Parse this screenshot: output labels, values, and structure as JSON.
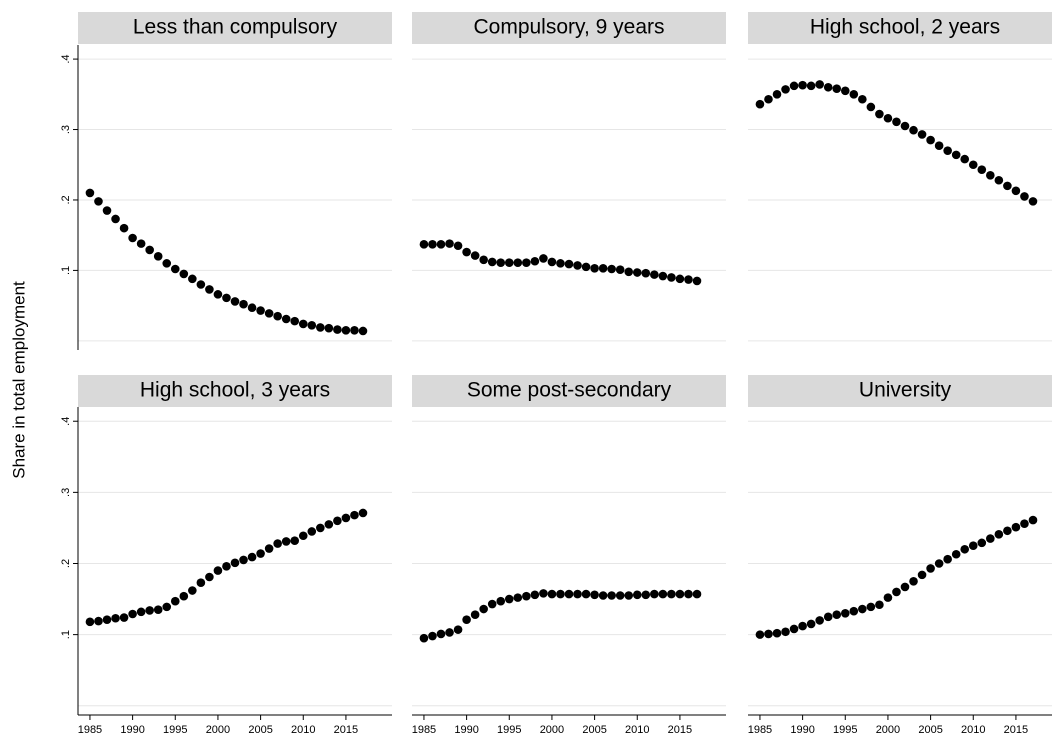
{
  "y_label": "Share in total employment",
  "chart_data": [
    {
      "type": "scatter",
      "title": "Less than compulsory",
      "color": "#000000",
      "x": [
        1985,
        1986,
        1987,
        1988,
        1989,
        1990,
        1991,
        1992,
        1993,
        1994,
        1995,
        1996,
        1997,
        1998,
        1999,
        2000,
        2001,
        2002,
        2003,
        2004,
        2005,
        2006,
        2007,
        2008,
        2009,
        2010,
        2011,
        2012,
        2013,
        2014,
        2015,
        2016,
        2017
      ],
      "values": [
        0.21,
        0.198,
        0.185,
        0.173,
        0.16,
        0.146,
        0.138,
        0.129,
        0.12,
        0.11,
        0.102,
        0.095,
        0.088,
        0.08,
        0.073,
        0.066,
        0.061,
        0.056,
        0.052,
        0.047,
        0.043,
        0.039,
        0.035,
        0.031,
        0.028,
        0.024,
        0.022,
        0.019,
        0.018,
        0.016,
        0.015,
        0.015,
        0.014
      ],
      "xlim": [
        1983.6,
        2020.4
      ],
      "ylim": [
        -0.013,
        0.42
      ],
      "yticks": [
        0,
        {
          "value": 0.1,
          "label": ".1"
        },
        {
          "value": 0.2,
          "label": ".2"
        },
        {
          "value": 0.3,
          "label": ".3"
        },
        {
          "value": 0.4,
          "label": ".4"
        }
      ],
      "grid": true
    },
    {
      "type": "scatter",
      "title": "Compulsory, 9 years",
      "color": "#000000",
      "x": [
        1985,
        1986,
        1987,
        1988,
        1989,
        1990,
        1991,
        1992,
        1993,
        1994,
        1995,
        1996,
        1997,
        1998,
        1999,
        2000,
        2001,
        2002,
        2003,
        2004,
        2005,
        2006,
        2007,
        2008,
        2009,
        2010,
        2011,
        2012,
        2013,
        2014,
        2015,
        2016,
        2017
      ],
      "values": [
        0.137,
        0.137,
        0.137,
        0.138,
        0.135,
        0.126,
        0.121,
        0.115,
        0.112,
        0.111,
        0.111,
        0.111,
        0.111,
        0.113,
        0.117,
        0.112,
        0.11,
        0.109,
        0.107,
        0.105,
        0.103,
        0.103,
        0.102,
        0.101,
        0.098,
        0.097,
        0.096,
        0.094,
        0.092,
        0.09,
        0.088,
        0.087,
        0.085
      ],
      "xlim": [
        1983.6,
        2020.4
      ],
      "ylim": [
        -0.013,
        0.42
      ],
      "yticks": [
        0,
        0.1,
        0.2,
        0.3,
        0.4
      ],
      "grid": true
    },
    {
      "type": "scatter",
      "title": "High school, 2 years",
      "color": "#000000",
      "x": [
        1985,
        1986,
        1987,
        1988,
        1989,
        1990,
        1991,
        1992,
        1993,
        1994,
        1995,
        1996,
        1997,
        1998,
        1999,
        2000,
        2001,
        2002,
        2003,
        2004,
        2005,
        2006,
        2007,
        2008,
        2009,
        2010,
        2011,
        2012,
        2013,
        2014,
        2015,
        2016,
        2017
      ],
      "values": [
        0.336,
        0.343,
        0.35,
        0.357,
        0.362,
        0.363,
        0.362,
        0.364,
        0.36,
        0.358,
        0.355,
        0.35,
        0.343,
        0.332,
        0.322,
        0.316,
        0.311,
        0.305,
        0.299,
        0.293,
        0.285,
        0.277,
        0.27,
        0.264,
        0.258,
        0.25,
        0.243,
        0.235,
        0.228,
        0.22,
        0.213,
        0.205,
        0.198
      ],
      "xlim": [
        1983.6,
        2020.4
      ],
      "ylim": [
        -0.013,
        0.42
      ],
      "yticks": [
        0,
        0.1,
        0.2,
        0.3,
        0.4
      ],
      "grid": true
    },
    {
      "type": "scatter",
      "title": "High school, 3 years",
      "color": "#000000",
      "x": [
        1985,
        1986,
        1987,
        1988,
        1989,
        1990,
        1991,
        1992,
        1993,
        1994,
        1995,
        1996,
        1997,
        1998,
        1999,
        2000,
        2001,
        2002,
        2003,
        2004,
        2005,
        2006,
        2007,
        2008,
        2009,
        2010,
        2011,
        2012,
        2013,
        2014,
        2015,
        2016,
        2017
      ],
      "values": [
        0.118,
        0.119,
        0.121,
        0.123,
        0.124,
        0.129,
        0.132,
        0.134,
        0.135,
        0.139,
        0.147,
        0.154,
        0.162,
        0.173,
        0.181,
        0.19,
        0.196,
        0.201,
        0.205,
        0.209,
        0.214,
        0.221,
        0.228,
        0.231,
        0.232,
        0.239,
        0.245,
        0.25,
        0.255,
        0.26,
        0.264,
        0.268,
        0.271
      ],
      "xlim": [
        1983.6,
        2020.4
      ],
      "ylim": [
        -0.013,
        0.42
      ],
      "xticks": [
        1985,
        1990,
        1995,
        2000,
        2005,
        2010,
        2015
      ],
      "yticks": [
        0,
        {
          "value": 0.1,
          "label": ".1"
        },
        {
          "value": 0.2,
          "label": ".2"
        },
        {
          "value": 0.3,
          "label": ".3"
        },
        {
          "value": 0.4,
          "label": ".4"
        }
      ],
      "grid": true
    },
    {
      "type": "scatter",
      "title": "Some post-secondary",
      "color": "#000000",
      "x": [
        1985,
        1986,
        1987,
        1988,
        1989,
        1990,
        1991,
        1992,
        1993,
        1994,
        1995,
        1996,
        1997,
        1998,
        1999,
        2000,
        2001,
        2002,
        2003,
        2004,
        2005,
        2006,
        2007,
        2008,
        2009,
        2010,
        2011,
        2012,
        2013,
        2014,
        2015,
        2016,
        2017
      ],
      "values": [
        0.095,
        0.098,
        0.101,
        0.103,
        0.107,
        0.121,
        0.128,
        0.136,
        0.143,
        0.147,
        0.15,
        0.152,
        0.154,
        0.156,
        0.158,
        0.157,
        0.157,
        0.157,
        0.157,
        0.157,
        0.156,
        0.155,
        0.155,
        0.155,
        0.155,
        0.156,
        0.156,
        0.157,
        0.157,
        0.157,
        0.157,
        0.157,
        0.157
      ],
      "xlim": [
        1983.6,
        2020.4
      ],
      "ylim": [
        -0.013,
        0.42
      ],
      "xticks": [
        1985,
        1990,
        1995,
        2000,
        2005,
        2010,
        2015
      ],
      "yticks": [
        0,
        0.1,
        0.2,
        0.3,
        0.4
      ],
      "grid": true
    },
    {
      "type": "scatter",
      "title": "University",
      "color": "#000000",
      "x": [
        1985,
        1986,
        1987,
        1988,
        1989,
        1990,
        1991,
        1992,
        1993,
        1994,
        1995,
        1996,
        1997,
        1998,
        1999,
        2000,
        2001,
        2002,
        2003,
        2004,
        2005,
        2006,
        2007,
        2008,
        2009,
        2010,
        2011,
        2012,
        2013,
        2014,
        2015,
        2016,
        2017
      ],
      "values": [
        0.1,
        0.101,
        0.102,
        0.104,
        0.108,
        0.112,
        0.115,
        0.12,
        0.125,
        0.128,
        0.13,
        0.133,
        0.136,
        0.139,
        0.142,
        0.152,
        0.16,
        0.167,
        0.175,
        0.184,
        0.193,
        0.2,
        0.206,
        0.213,
        0.22,
        0.225,
        0.229,
        0.235,
        0.241,
        0.246,
        0.251,
        0.256,
        0.261
      ],
      "xlim": [
        1983.6,
        2020.4
      ],
      "ylim": [
        -0.013,
        0.42
      ],
      "xticks": [
        1985,
        1990,
        1995,
        2000,
        2005,
        2010,
        2015
      ],
      "yticks": [
        0,
        0.1,
        0.2,
        0.3,
        0.4
      ],
      "grid": true
    }
  ]
}
